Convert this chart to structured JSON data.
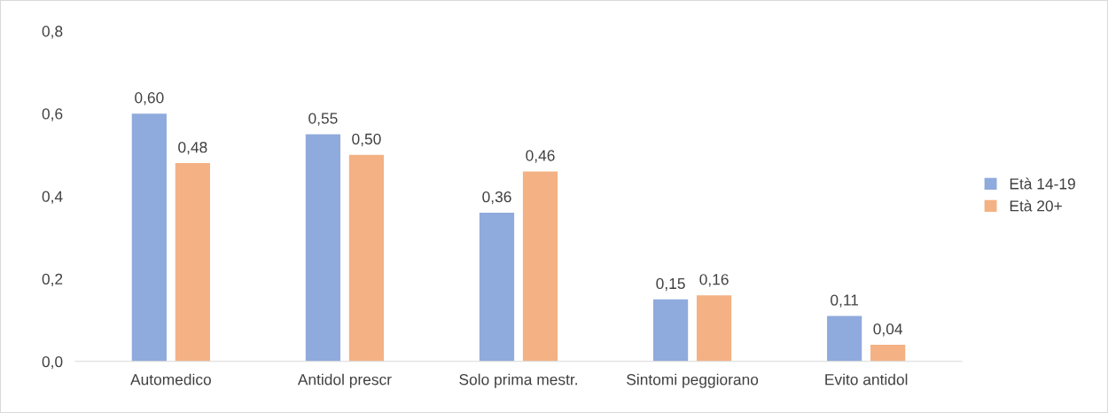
{
  "chart_data": {
    "type": "bar",
    "categories": [
      "Automedico",
      "Antidol prescr",
      "Solo prima mestr.",
      "Sintomi peggiorano",
      "Evito antidol"
    ],
    "series": [
      {
        "name": "Età 14-19",
        "color": "#8faadc",
        "values": [
          0.6,
          0.55,
          0.36,
          0.15,
          0.11
        ],
        "value_labels": [
          "0,60",
          "0,55",
          "0,36",
          "0,15",
          "0,11"
        ]
      },
      {
        "name": "Età 20+",
        "color": "#f4b183",
        "values": [
          0.48,
          0.5,
          0.46,
          0.16,
          0.04
        ],
        "value_labels": [
          "0,48",
          "0,50",
          "0,46",
          "0,16",
          "0,04"
        ]
      }
    ],
    "ylim": [
      0,
      0.8
    ],
    "yticks": [
      {
        "value": 0,
        "label": "0,0"
      },
      {
        "value": 0.2,
        "label": "0,2"
      },
      {
        "value": 0.4,
        "label": "0,4"
      },
      {
        "value": 0.6,
        "label": "0,6"
      },
      {
        "value": 0.8,
        "label": "0,8"
      }
    ],
    "grid": false,
    "legend": "right"
  }
}
